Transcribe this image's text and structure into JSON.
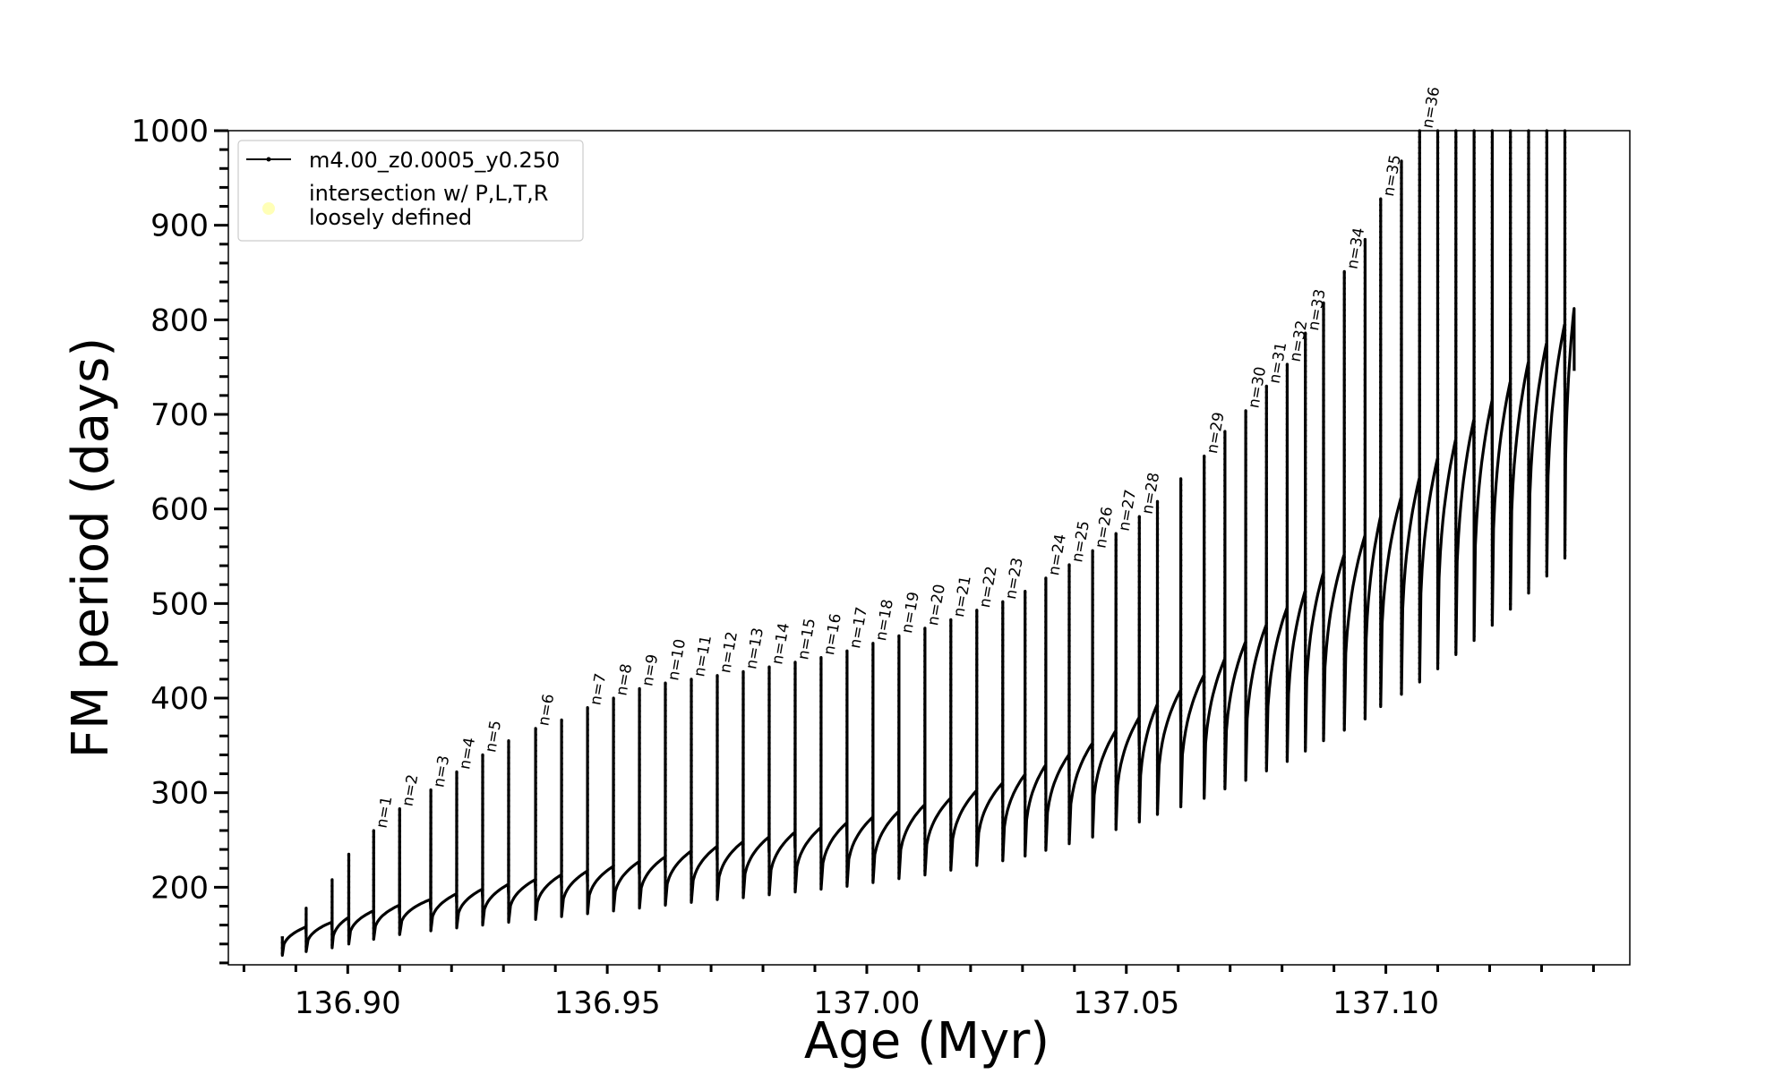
{
  "chart_data": {
    "type": "line",
    "xlabel": "Age (Myr)",
    "ylabel": "FM period (days)",
    "xlim": [
      136.877,
      137.147
    ],
    "ylim": [
      118,
      1000
    ],
    "x_ticks": [
      136.9,
      136.95,
      137.0,
      137.05,
      137.1
    ],
    "x_tick_labels": [
      "136.90",
      "136.95",
      "137.00",
      "137.05",
      "137.10"
    ],
    "x_minor_step": 0.01,
    "y_ticks": [
      200,
      300,
      400,
      500,
      600,
      700,
      800,
      900,
      1000
    ],
    "y_tick_labels": [
      "200",
      "300",
      "400",
      "500",
      "600",
      "700",
      "800",
      "900",
      "1000"
    ],
    "y_minor_step": 20,
    "grid": false,
    "legend_position": "top-left",
    "legend": [
      {
        "label": "m4.00_z0.0005_y0.250",
        "marker": "line-dot",
        "color": "#000000"
      },
      {
        "label_lines": [
          "intersection w/ P,L,T,R",
          "loosely defined"
        ],
        "marker": "circle",
        "color": "#ffff99"
      }
    ],
    "series": [
      {
        "name": "m4.00_z0.0005_y0.250",
        "color": "#000000",
        "note_shape": "loop pulses; each pulse rises from a trough to a spike top and relaxes to a baseline",
        "pulses": [
          {
            "age": 136.8874,
            "spike_top": 148,
            "trough": 128,
            "baseline": 158
          },
          {
            "age": 136.892,
            "spike_top": 178,
            "trough": 132,
            "baseline": 163
          },
          {
            "age": 136.897,
            "spike_top": 208,
            "trough": 136,
            "baseline": 168
          },
          {
            "age": 136.9002,
            "spike_top": 235,
            "trough": 140,
            "baseline": 175
          },
          {
            "age": 136.905,
            "spike_top": 260,
            "trough": 145,
            "baseline": 181,
            "label": "n=1"
          },
          {
            "age": 136.91,
            "spike_top": 283,
            "trough": 150,
            "baseline": 187,
            "label": "n=2"
          },
          {
            "age": 136.916,
            "spike_top": 303,
            "trough": 154,
            "baseline": 193,
            "label": "n=3"
          },
          {
            "age": 136.921,
            "spike_top": 322,
            "trough": 157,
            "baseline": 198,
            "label": "n=4"
          },
          {
            "age": 136.926,
            "spike_top": 340,
            "trough": 160,
            "baseline": 203,
            "label": "n=5"
          },
          {
            "age": 136.931,
            "spike_top": 355,
            "trough": 163,
            "baseline": 208,
            "label": null
          },
          {
            "age": 136.9362,
            "spike_top": 368,
            "trough": 166,
            "baseline": 213,
            "label": "n=6"
          },
          {
            "age": 136.9412,
            "spike_top": 377,
            "trough": 169,
            "baseline": 217,
            "label": null
          },
          {
            "age": 136.9462,
            "spike_top": 390,
            "trough": 172,
            "baseline": 222,
            "label": "n=7"
          },
          {
            "age": 136.9512,
            "spike_top": 400,
            "trough": 175,
            "baseline": 227,
            "label": "n=8"
          },
          {
            "age": 136.9562,
            "spike_top": 410,
            "trough": 178,
            "baseline": 232,
            "label": "n=9"
          },
          {
            "age": 136.9612,
            "spike_top": 416,
            "trough": 181,
            "baseline": 238,
            "label": "n=10"
          },
          {
            "age": 136.9662,
            "spike_top": 420,
            "trough": 184,
            "baseline": 243,
            "label": "n=11"
          },
          {
            "age": 136.9712,
            "spike_top": 424,
            "trough": 187,
            "baseline": 248,
            "label": "n=12"
          },
          {
            "age": 136.9762,
            "spike_top": 428,
            "trough": 189,
            "baseline": 253,
            "label": "n=13"
          },
          {
            "age": 136.9812,
            "spike_top": 433,
            "trough": 192,
            "baseline": 258,
            "label": "n=14"
          },
          {
            "age": 136.9862,
            "spike_top": 438,
            "trough": 195,
            "baseline": 263,
            "label": "n=15"
          },
          {
            "age": 136.9912,
            "spike_top": 443,
            "trough": 198,
            "baseline": 268,
            "label": "n=16"
          },
          {
            "age": 136.9962,
            "spike_top": 450,
            "trough": 201,
            "baseline": 274,
            "label": "n=17"
          },
          {
            "age": 137.0012,
            "spike_top": 458,
            "trough": 205,
            "baseline": 280,
            "label": "n=18"
          },
          {
            "age": 137.0062,
            "spike_top": 466,
            "trough": 209,
            "baseline": 287,
            "label": "n=19"
          },
          {
            "age": 137.0112,
            "spike_top": 474,
            "trough": 213,
            "baseline": 294,
            "label": "n=20"
          },
          {
            "age": 137.0162,
            "spike_top": 483,
            "trough": 218,
            "baseline": 302,
            "label": "n=21"
          },
          {
            "age": 137.0212,
            "spike_top": 493,
            "trough": 223,
            "baseline": 310,
            "label": "n=22"
          },
          {
            "age": 137.0262,
            "spike_top": 502,
            "trough": 228,
            "baseline": 319,
            "label": "n=23"
          },
          {
            "age": 137.0305,
            "spike_top": 513,
            "trough": 233,
            "baseline": 329,
            "label": null
          },
          {
            "age": 137.0345,
            "spike_top": 527,
            "trough": 239,
            "baseline": 340,
            "label": "n=24"
          },
          {
            "age": 137.039,
            "spike_top": 541,
            "trough": 246,
            "baseline": 352,
            "label": "n=25"
          },
          {
            "age": 137.0435,
            "spike_top": 556,
            "trough": 253,
            "baseline": 365,
            "label": "n=26"
          },
          {
            "age": 137.048,
            "spike_top": 574,
            "trough": 261,
            "baseline": 379,
            "label": "n=27"
          },
          {
            "age": 137.0525,
            "spike_top": 592,
            "trough": 269,
            "baseline": 393,
            "label": "n=28"
          },
          {
            "age": 137.056,
            "spike_top": 608,
            "trough": 277,
            "baseline": 408,
            "label": null
          },
          {
            "age": 137.0605,
            "spike_top": 632,
            "trough": 285,
            "baseline": 424,
            "label": null
          },
          {
            "age": 137.065,
            "spike_top": 656,
            "trough": 294,
            "baseline": 441,
            "label": "n=29"
          },
          {
            "age": 137.069,
            "spike_top": 682,
            "trough": 304,
            "baseline": 459,
            "label": null
          },
          {
            "age": 137.073,
            "spike_top": 704,
            "trough": 313,
            "baseline": 477,
            "label": "n=30"
          },
          {
            "age": 137.077,
            "spike_top": 730,
            "trough": 323,
            "baseline": 495,
            "label": "n=31"
          },
          {
            "age": 137.081,
            "spike_top": 753,
            "trough": 333,
            "baseline": 513,
            "label": "n=32"
          },
          {
            "age": 137.0845,
            "spike_top": 786,
            "trough": 344,
            "baseline": 532,
            "label": "n=33"
          },
          {
            "age": 137.088,
            "spike_top": 818,
            "trough": 355,
            "baseline": 551,
            "label": null
          },
          {
            "age": 137.092,
            "spike_top": 851,
            "trough": 366,
            "baseline": 571,
            "label": "n=34"
          },
          {
            "age": 137.096,
            "spike_top": 885,
            "trough": 378,
            "baseline": 591,
            "label": null
          },
          {
            "age": 137.099,
            "spike_top": 928,
            "trough": 391,
            "baseline": 612,
            "label": "n=35"
          },
          {
            "age": 137.103,
            "spike_top": 968,
            "trough": 404,
            "baseline": 632,
            "label": null
          },
          {
            "age": 137.1065,
            "spike_top": 1000,
            "trough": 417,
            "baseline": 653,
            "label": "n=36"
          },
          {
            "age": 137.11,
            "spike_top": 1000,
            "trough": 431,
            "baseline": 673,
            "label": null
          },
          {
            "age": 137.1135,
            "spike_top": 1000,
            "trough": 446,
            "baseline": 694,
            "label": null
          },
          {
            "age": 137.117,
            "spike_top": 1000,
            "trough": 461,
            "baseline": 714,
            "label": null
          },
          {
            "age": 137.1205,
            "spike_top": 1000,
            "trough": 477,
            "baseline": 734,
            "label": null
          },
          {
            "age": 137.124,
            "spike_top": 1000,
            "trough": 494,
            "baseline": 755,
            "label": null
          },
          {
            "age": 137.1275,
            "spike_top": 1000,
            "trough": 511,
            "baseline": 775,
            "label": null
          },
          {
            "age": 137.131,
            "spike_top": 1000,
            "trough": 529,
            "baseline": 795,
            "label": null
          },
          {
            "age": 137.1345,
            "spike_top": 1000,
            "trough": 548,
            "baseline": 812,
            "label": null
          }
        ]
      }
    ]
  }
}
